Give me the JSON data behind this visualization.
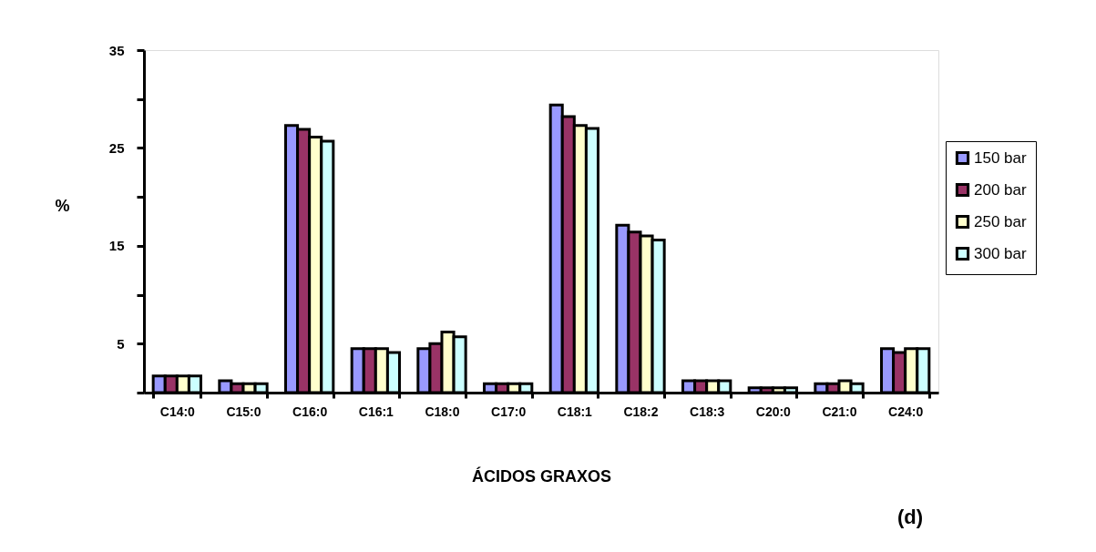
{
  "chart_data": {
    "type": "bar",
    "xlabel": "ÁCIDOS GRAXOS",
    "ylabel": "%",
    "categories": [
      "C14:0",
      "C15:0",
      "C16:0",
      "C16:1",
      "C18:0",
      "C17:0",
      "C18:1",
      "C18:2",
      "C18:3",
      "C20:0",
      "C21:0",
      "C24:0"
    ],
    "series": [
      {
        "name": "150 bar",
        "color": "#9999ff",
        "values": [
          1.7,
          1.2,
          27.3,
          4.5,
          4.5,
          0.9,
          29.4,
          17.1,
          1.2,
          0.5,
          0.9,
          4.5
        ]
      },
      {
        "name": "200 bar",
        "color": "#993366",
        "values": [
          1.7,
          0.9,
          26.9,
          4.5,
          5.0,
          0.9,
          28.2,
          16.4,
          1.2,
          0.5,
          0.9,
          4.1
        ]
      },
      {
        "name": "250 bar",
        "color": "#ffffcc",
        "values": [
          1.7,
          0.9,
          26.1,
          4.5,
          6.2,
          0.9,
          27.3,
          16.0,
          1.2,
          0.5,
          1.2,
          4.5
        ]
      },
      {
        "name": "300 bar",
        "color": "#ccffff",
        "values": [
          1.7,
          0.9,
          25.7,
          4.1,
          5.7,
          0.9,
          27.0,
          15.6,
          1.2,
          0.5,
          0.9,
          4.5
        ]
      }
    ],
    "ylim": [
      0,
      35
    ],
    "yticks": [
      {
        "value": 0,
        "label": null
      },
      5,
      {
        "value": 10,
        "label": null
      },
      15,
      {
        "value": 20,
        "label": null
      },
      25,
      {
        "value": 30,
        "label": null
      },
      35
    ],
    "grid": false,
    "legend": "right",
    "annotations": [
      "(d)"
    ]
  }
}
